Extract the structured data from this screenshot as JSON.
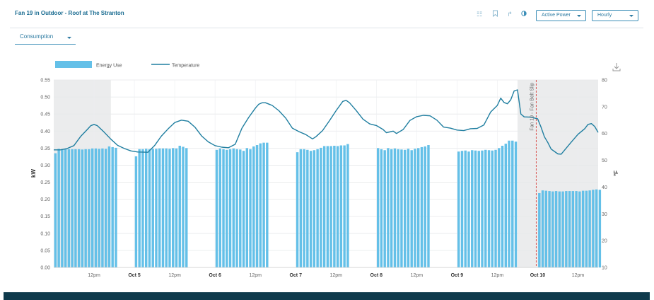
{
  "header": {
    "title": "Fan 19 in Outdoor - Roof at The Stranton",
    "metric_select": "Active Power",
    "interval_select": "Hourly",
    "icons": [
      "grid-icon",
      "bookmark-icon",
      "share-icon",
      "contrast-icon"
    ]
  },
  "view_select": "Consumption",
  "colors": {
    "bar": "#64c0e8",
    "line": "#1f7ea0",
    "shade": "#ebeced",
    "annotation": "#d9534f",
    "accent": "#2c7aa1"
  },
  "chart_data": {
    "type": "bar+line",
    "legend": {
      "placement": "top-left",
      "entries": [
        "Energy Use",
        "Temperature"
      ]
    },
    "ylabel_left": "kW",
    "ylabel_right": "°F",
    "ylim_left": [
      0,
      0.55
    ],
    "ylim_right": [
      10,
      80
    ],
    "y_ticks_left": [
      "0.00",
      "0.05",
      "0.10",
      "0.15",
      "0.20",
      "0.25",
      "0.30",
      "0.35",
      "0.40",
      "0.45",
      "0.50",
      "0.55"
    ],
    "y_ticks_right": [
      "10",
      "20",
      "30",
      "40",
      "50",
      "60",
      "70",
      "80"
    ],
    "x_ticks": [
      {
        "label": "12pm",
        "hour": 12,
        "bold": false
      },
      {
        "label": "Oct 5",
        "hour": 24,
        "bold": true
      },
      {
        "label": "12pm",
        "hour": 36,
        "bold": false
      },
      {
        "label": "Oct 6",
        "hour": 48,
        "bold": true
      },
      {
        "label": "12pm",
        "hour": 60,
        "bold": false
      },
      {
        "label": "Oct 7",
        "hour": 72,
        "bold": true
      },
      {
        "label": "12pm",
        "hour": 84,
        "bold": false
      },
      {
        "label": "Oct 8",
        "hour": 96,
        "bold": true
      },
      {
        "label": "12pm",
        "hour": 108,
        "bold": false
      },
      {
        "label": "Oct 9",
        "hour": 120,
        "bold": true
      },
      {
        "label": "12pm",
        "hour": 132,
        "bold": false
      },
      {
        "label": "Oct 10",
        "hour": 144,
        "bold": true
      },
      {
        "label": "12pm",
        "hour": 156,
        "bold": false
      }
    ],
    "x_range_hours": [
      0,
      162
    ],
    "shaded_ranges": [
      [
        0,
        17
      ],
      [
        138,
        162
      ]
    ],
    "annotation": {
      "label": "Fan 19 - Fan Belt Slip",
      "hour": 144
    },
    "energy_segments": [
      {
        "start": 0,
        "values": [
          0.335,
          0.348,
          0.347,
          0.348,
          0.347,
          0.347,
          0.347,
          0.347,
          0.346,
          0.347,
          0.347,
          0.349,
          0.349,
          0.348,
          0.349,
          0.348,
          0.355,
          0.353,
          0.351
        ]
      },
      {
        "start": 24,
        "values": [
          0.326,
          0.347,
          0.347,
          0.348,
          0.347,
          0.348,
          0.348,
          0.349,
          0.349,
          0.349,
          0.348,
          0.35,
          0.349,
          0.357,
          0.354,
          0.35
        ]
      },
      {
        "start": 48,
        "values": [
          0.345,
          0.349,
          0.347,
          0.345,
          0.347,
          0.349,
          0.347,
          0.346,
          0.342,
          0.35,
          0.347,
          0.355,
          0.359,
          0.364,
          0.366,
          0.366
        ]
      },
      {
        "start": 72,
        "values": [
          0.338,
          0.347,
          0.347,
          0.345,
          0.342,
          0.344,
          0.347,
          0.351,
          0.356,
          0.356,
          0.356,
          0.357,
          0.356,
          0.358,
          0.358,
          0.362
        ]
      },
      {
        "start": 96,
        "values": [
          0.35,
          0.347,
          0.344,
          0.35,
          0.347,
          0.349,
          0.347,
          0.346,
          0.345,
          0.348,
          0.344,
          0.348,
          0.35,
          0.353,
          0.355,
          0.359
        ]
      },
      {
        "start": 120,
        "values": [
          0.34,
          0.342,
          0.343,
          0.34,
          0.344,
          0.343,
          0.342,
          0.343,
          0.345,
          0.344,
          0.343,
          0.345,
          0.35,
          0.357,
          0.363,
          0.372,
          0.372,
          0.369
        ]
      },
      {
        "start": 144,
        "values": [
          0.218,
          0.226,
          0.225,
          0.224,
          0.223,
          0.224,
          0.223,
          0.223,
          0.224,
          0.224,
          0.224,
          0.224,
          0.223,
          0.225,
          0.225,
          0.226,
          0.228,
          0.229,
          0.228
        ]
      }
    ],
    "temperature": [
      [
        0,
        53.9
      ],
      [
        2,
        53.9
      ],
      [
        4,
        54.4
      ],
      [
        6,
        55.5
      ],
      [
        8,
        58.9
      ],
      [
        10,
        61.5
      ],
      [
        11,
        62.9
      ],
      [
        12,
        63.4
      ],
      [
        13,
        62.9
      ],
      [
        15,
        60.5
      ],
      [
        17,
        57.9
      ],
      [
        19,
        55.6
      ],
      [
        21,
        54.4
      ],
      [
        23,
        53.5
      ],
      [
        25,
        53.1
      ],
      [
        28,
        53.0
      ],
      [
        30,
        55.5
      ],
      [
        32,
        59.0
      ],
      [
        34,
        61.7
      ],
      [
        36,
        64.1
      ],
      [
        38,
        65.0
      ],
      [
        40,
        64.6
      ],
      [
        42,
        62.4
      ],
      [
        44,
        59.1
      ],
      [
        46,
        56.9
      ],
      [
        48,
        55.5
      ],
      [
        50,
        54.9
      ],
      [
        52,
        54.7
      ],
      [
        54,
        56.0
      ],
      [
        56,
        62.0
      ],
      [
        58,
        66.0
      ],
      [
        60,
        69.5
      ],
      [
        61,
        70.9
      ],
      [
        62,
        71.5
      ],
      [
        63,
        71.5
      ],
      [
        65,
        70.5
      ],
      [
        67,
        68.5
      ],
      [
        69,
        65.8
      ],
      [
        71,
        62.0
      ],
      [
        73,
        60.7
      ],
      [
        75,
        59.6
      ],
      [
        77,
        58.0
      ],
      [
        78,
        58.8
      ],
      [
        80,
        61.1
      ],
      [
        82,
        64.7
      ],
      [
        84,
        68.5
      ],
      [
        86,
        72.0
      ],
      [
        87,
        72.4
      ],
      [
        88,
        71.5
      ],
      [
        90,
        68.6
      ],
      [
        92,
        65.4
      ],
      [
        94,
        63.6
      ],
      [
        96,
        63.0
      ],
      [
        98,
        61.5
      ],
      [
        99,
        60.3
      ],
      [
        101,
        60.9
      ],
      [
        102,
        60.0
      ],
      [
        104,
        61.5
      ],
      [
        106,
        64.9
      ],
      [
        108,
        66.3
      ],
      [
        110,
        66.8
      ],
      [
        112,
        66.6
      ],
      [
        114,
        65.0
      ],
      [
        116,
        62.4
      ],
      [
        118,
        62.0
      ],
      [
        120,
        61.3
      ],
      [
        122,
        61.1
      ],
      [
        124,
        61.8
      ],
      [
        126,
        61.9
      ],
      [
        128,
        63.2
      ],
      [
        130,
        68.0
      ],
      [
        132,
        70.5
      ],
      [
        133,
        73.2
      ],
      [
        134,
        71.6
      ],
      [
        135,
        71.1
      ],
      [
        136,
        72.6
      ],
      [
        137,
        75.9
      ],
      [
        138,
        76.3
      ],
      [
        139,
        67.3
      ],
      [
        140,
        66.2
      ],
      [
        142,
        66.1
      ],
      [
        144,
        65.5
      ],
      [
        145,
        62.4
      ],
      [
        146,
        58.8
      ],
      [
        147,
        56.7
      ],
      [
        148,
        54.2
      ],
      [
        150,
        52.4
      ],
      [
        151,
        52.3
      ],
      [
        152,
        53.8
      ],
      [
        154,
        56.8
      ],
      [
        156,
        59.7
      ],
      [
        158,
        61.8
      ],
      [
        159,
        63.4
      ],
      [
        160,
        63.7
      ],
      [
        161,
        62.6
      ],
      [
        162,
        60.4
      ],
      [
        164,
        58.3
      ],
      [
        166,
        57.3
      ],
      [
        168,
        56.8
      ]
    ]
  }
}
